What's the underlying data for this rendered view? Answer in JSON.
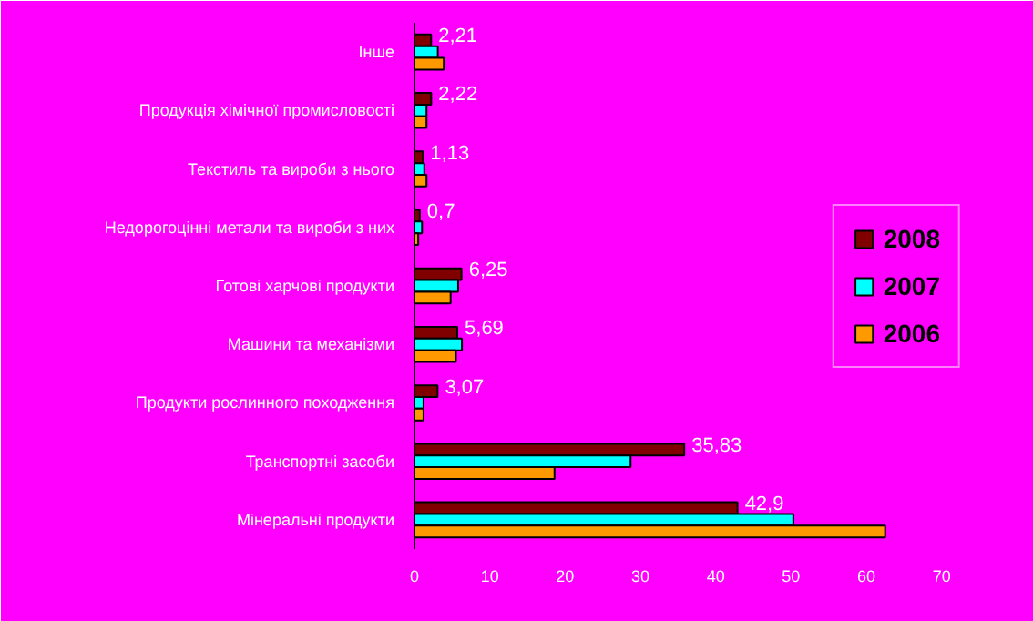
{
  "chart_data": {
    "type": "bar",
    "orientation": "horizontal",
    "categories": [
      "Інше",
      "Продукція хімічної промисловості",
      "Текстиль та вироби з нього",
      "Недорогоцінні метали та вироби з них",
      "Готові харчові продукти",
      "Машини та механізми",
      "Продукти рослинного походження",
      "Транспортні засоби",
      "Мінеральні продукти"
    ],
    "series": [
      {
        "name": "2008",
        "color": "#800000",
        "values": [
          2.21,
          2.22,
          1.13,
          0.7,
          6.25,
          5.69,
          3.07,
          35.83,
          42.9
        ],
        "value_labels": [
          "2,21",
          "2,22",
          "1,13",
          "0,7",
          "6,25",
          "5,69",
          "3,07",
          "35,83",
          "42,9"
        ]
      },
      {
        "name": "2007",
        "color": "#00ffff",
        "values": [
          3.1,
          1.6,
          1.3,
          1.0,
          5.8,
          6.3,
          1.2,
          28.7,
          50.3
        ]
      },
      {
        "name": "2006",
        "color": "#ff9900",
        "values": [
          3.9,
          1.6,
          1.6,
          0.5,
          4.8,
          5.5,
          1.2,
          18.6,
          62.5
        ]
      }
    ],
    "xlim": [
      0,
      75
    ],
    "xticks": [
      0,
      10,
      20,
      30,
      40,
      50,
      60,
      70
    ],
    "grid": false,
    "legend": "right"
  }
}
